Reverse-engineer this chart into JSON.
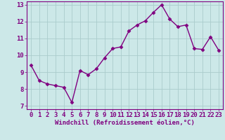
{
  "x": [
    0,
    1,
    2,
    3,
    4,
    5,
    6,
    7,
    8,
    9,
    10,
    11,
    12,
    13,
    14,
    15,
    16,
    17,
    18,
    19,
    20,
    21,
    22,
    23
  ],
  "y": [
    9.4,
    8.5,
    8.3,
    8.2,
    8.1,
    7.2,
    9.1,
    8.85,
    9.2,
    9.85,
    10.4,
    10.5,
    11.45,
    11.8,
    12.05,
    12.55,
    13.0,
    12.15,
    11.7,
    11.8,
    10.4,
    10.35,
    11.1,
    10.3
  ],
  "line_color": "#800080",
  "marker": "D",
  "marker_size": 2.5,
  "bg_color": "#cce8e8",
  "grid_color": "#aacccc",
  "xlabel": "Windchill (Refroidissement éolien,°C)",
  "xlim": [
    -0.5,
    23.5
  ],
  "ylim": [
    6.8,
    13.2
  ],
  "yticks": [
    7,
    8,
    9,
    10,
    11,
    12,
    13
  ],
  "xticks": [
    0,
    1,
    2,
    3,
    4,
    5,
    6,
    7,
    8,
    9,
    10,
    11,
    12,
    13,
    14,
    15,
    16,
    17,
    18,
    19,
    20,
    21,
    22,
    23
  ],
  "xlabel_fontsize": 6.5,
  "tick_fontsize": 6.5,
  "tick_color": "#800080",
  "axis_color": "#800080",
  "line_width": 1.0
}
